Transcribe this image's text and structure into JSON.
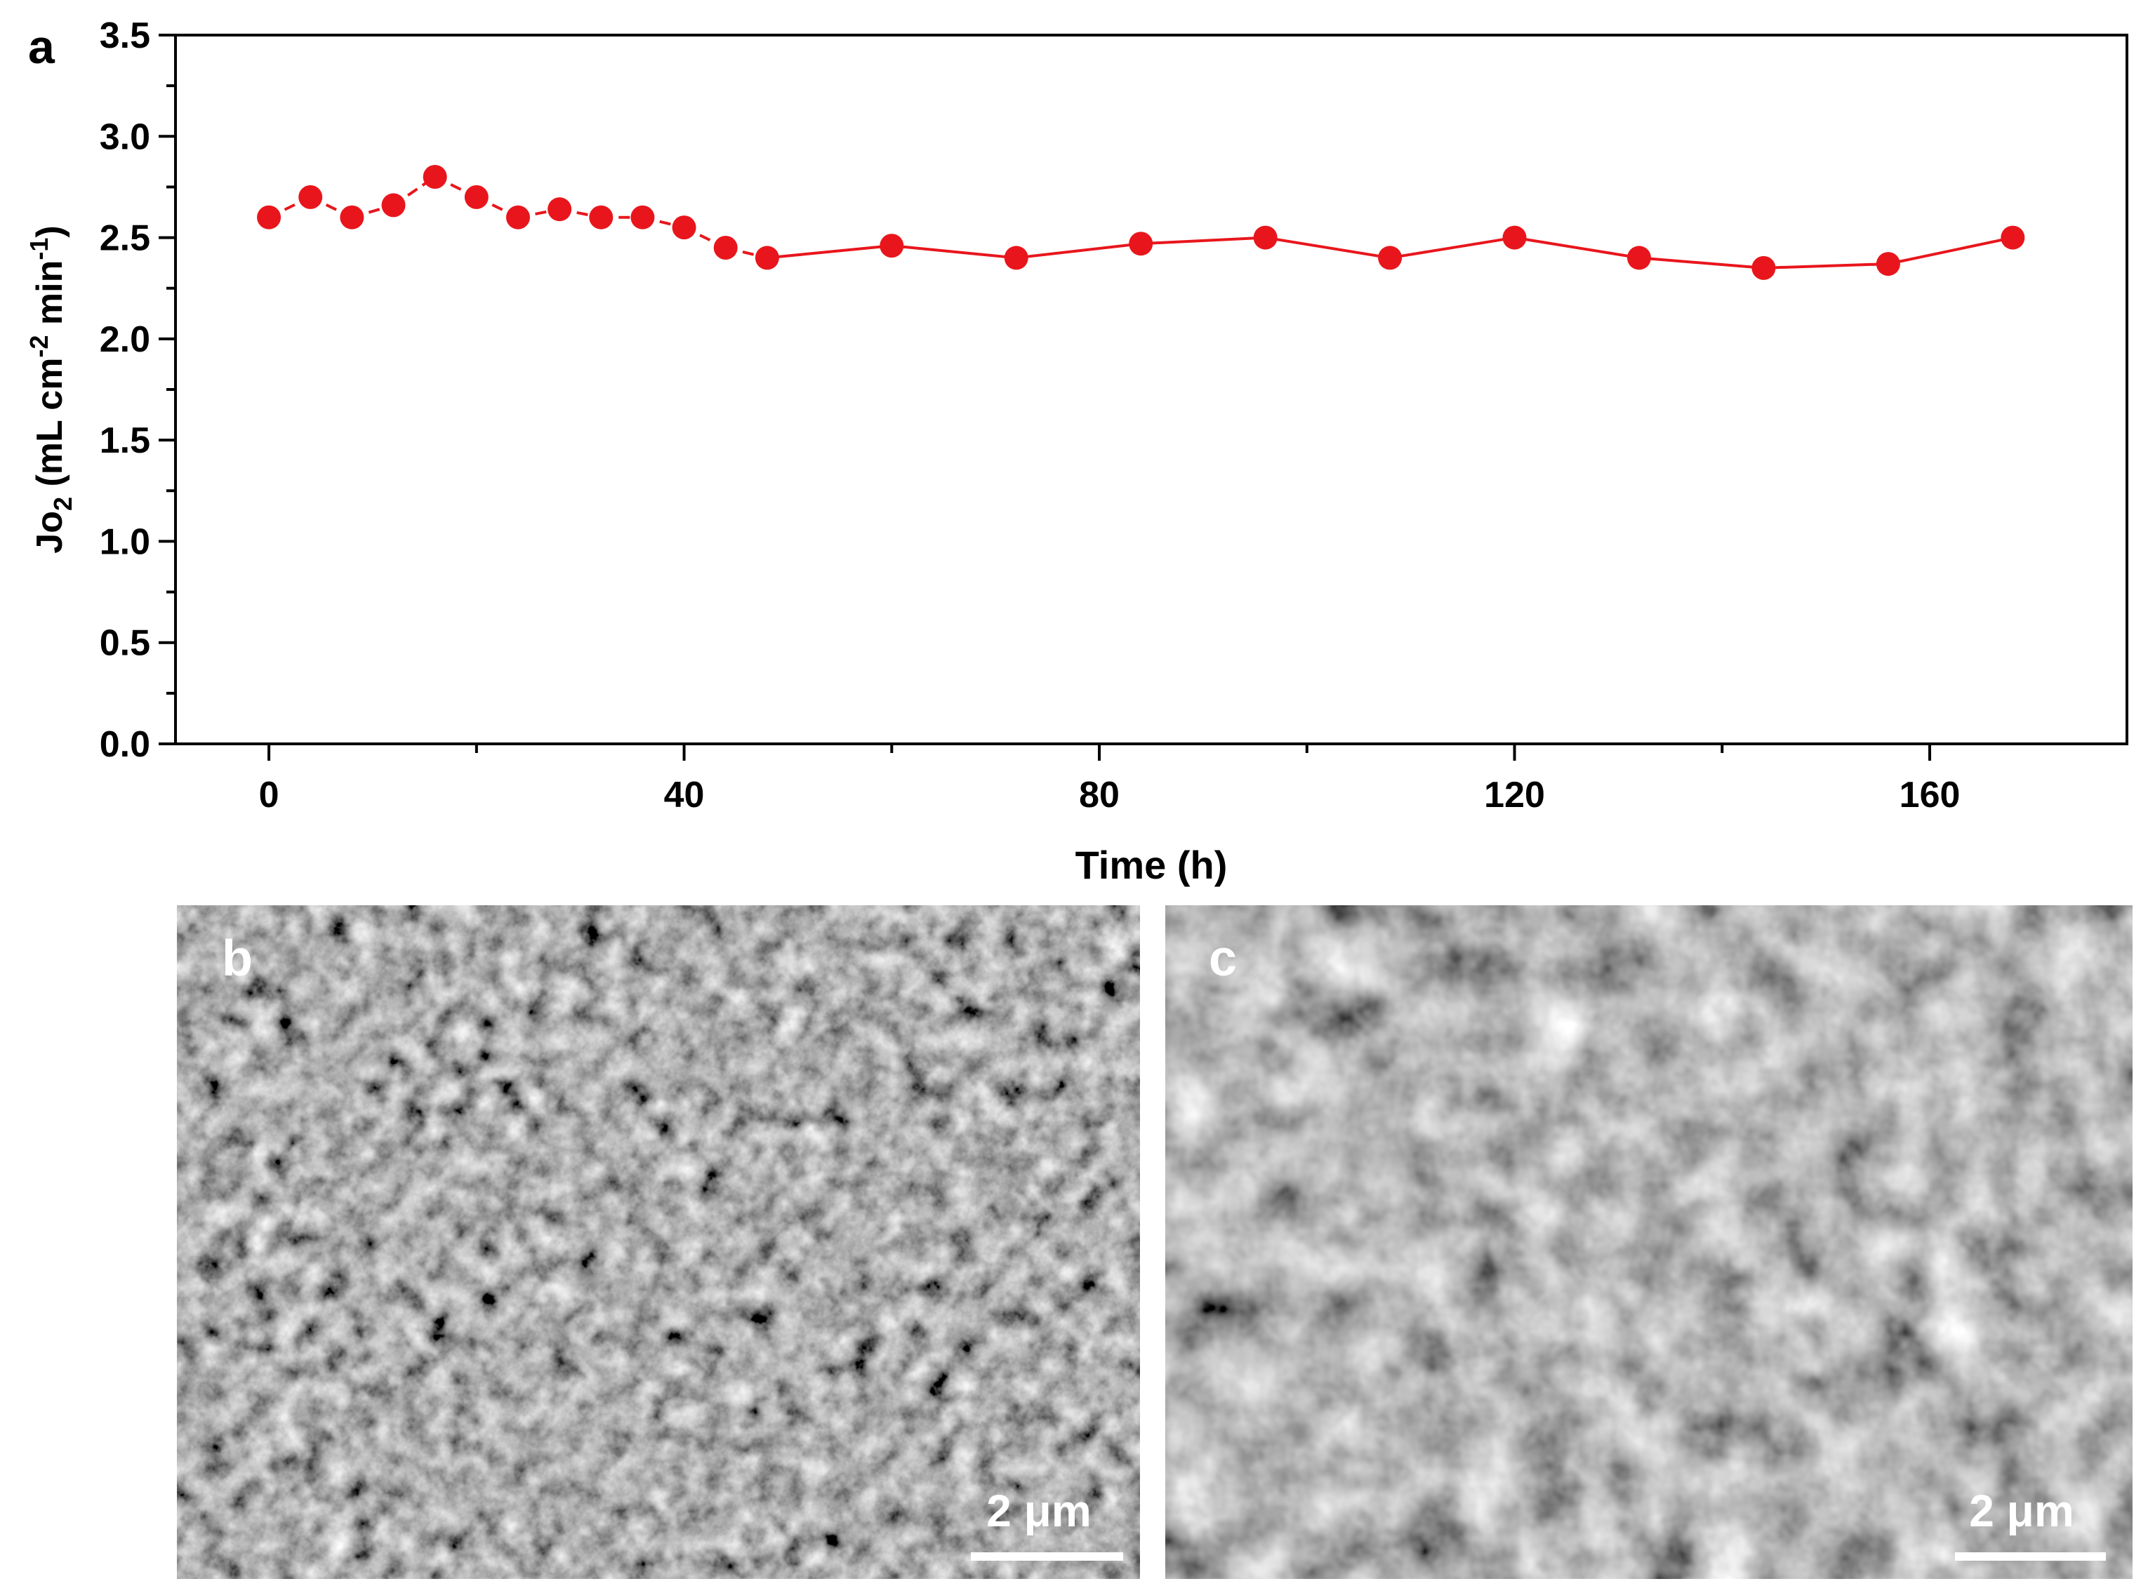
{
  "panels": {
    "a": {
      "label": "a"
    },
    "b": {
      "label": "b",
      "scale_bar_label": "2 μm"
    },
    "c": {
      "label": "c",
      "scale_bar_label": "2 μm"
    }
  },
  "colors": {
    "series": "#e8161c",
    "axis": "#000000",
    "sem_base": "#5b5b5b"
  },
  "chart_data": {
    "type": "line",
    "title": "",
    "xlabel": "Time (h)",
    "ylabel": {
      "main": "Jo",
      "sub": "2",
      "unit_open": " (mL cm",
      "exp1": "-2",
      "unit_mid": " min",
      "exp2": "-1",
      "unit_close": ")"
    },
    "xlim": [
      -9,
      179
    ],
    "ylim": [
      0,
      3.5
    ],
    "xticks": [
      0,
      40,
      80,
      120,
      160
    ],
    "xtick_labels": [
      "0",
      "40",
      "80",
      "120",
      "160"
    ],
    "yticks": [
      0,
      0.5,
      1.0,
      1.5,
      2.0,
      2.5,
      3.0,
      3.5
    ],
    "ytick_labels": [
      "0.0",
      "0.5",
      "1.0",
      "1.5",
      "2.0",
      "2.5",
      "3.0",
      "3.5"
    ],
    "grid": false,
    "legend": "none",
    "series": [
      {
        "marker": "circle",
        "x": [
          0,
          4,
          8,
          12,
          16,
          20,
          24,
          28,
          32,
          36,
          40,
          44,
          48,
          60,
          72,
          84,
          96,
          108,
          120,
          132,
          144,
          156,
          168
        ],
        "y": [
          2.6,
          2.7,
          2.6,
          2.66,
          2.8,
          2.7,
          2.6,
          2.64,
          2.6,
          2.6,
          2.55,
          2.45,
          2.4,
          2.46,
          2.4,
          2.47,
          2.5,
          2.4,
          2.5,
          2.4,
          2.35,
          2.37,
          2.5
        ],
        "dash_until_x": 48
      }
    ]
  }
}
